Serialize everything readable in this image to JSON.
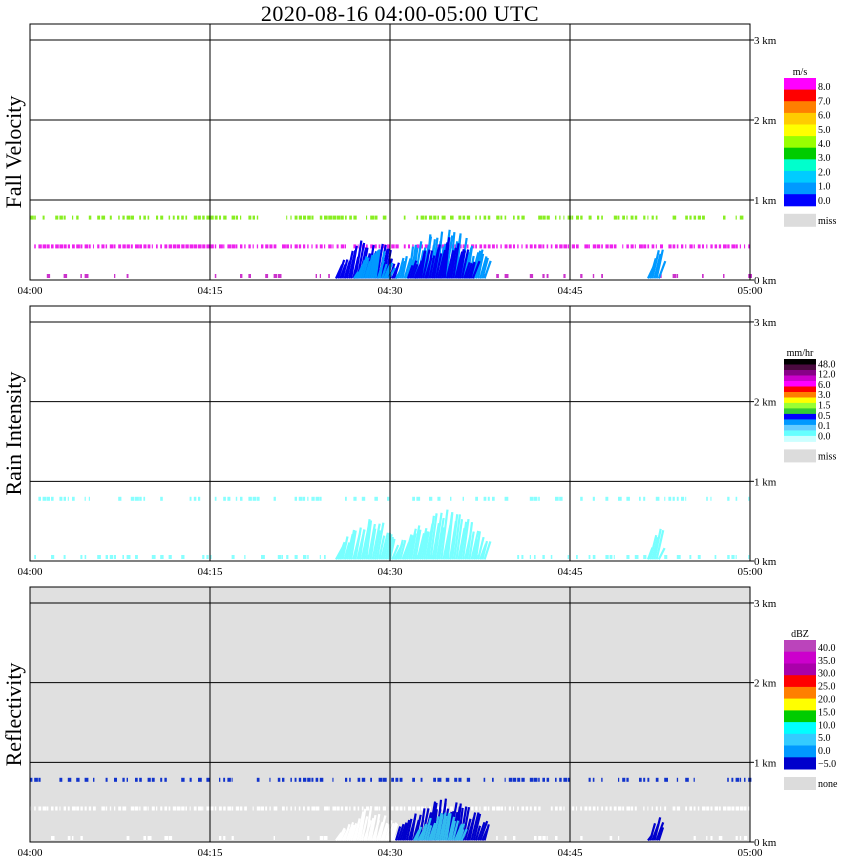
{
  "title": "2020-08-16   04:00-05:00 UTC",
  "x_ticks": [
    "04:00",
    "04:15",
    "04:30",
    "04:45",
    "05:00"
  ],
  "y_ticks": [
    "0 km",
    "1 km",
    "2 km",
    "3 km"
  ],
  "chart_data": [
    {
      "type": "heatmap",
      "ylabel": "Fall Velocity",
      "colorbar_title": "m/s",
      "colorbar_labels": [
        "8.0",
        "7.0",
        "6.0",
        "5.0",
        "4.0",
        "3.0",
        "2.0",
        "1.0",
        "0.0"
      ],
      "colorbar_colors": [
        "#ff00ff",
        "#ff0000",
        "#ff7f00",
        "#ffcc00",
        "#ffff00",
        "#99ff00",
        "#00cc00",
        "#00ffcc",
        "#00ccff",
        "#0099ff",
        "#0000ff"
      ],
      "missing_label": "miss",
      "background": "#ffffff",
      "bands": [
        {
          "y_km": 0.78,
          "color": "#88ee22",
          "density": 0.7
        },
        {
          "y_km": 0.42,
          "color": "#ee22ee",
          "density": 0.95
        },
        {
          "y_km": 0.05,
          "color": "#cc33cc",
          "density": 0.15
        }
      ],
      "cells": [
        {
          "t_start": 25.5,
          "t_end": 30.5,
          "max_km": 0.55,
          "color": "#0000ee"
        },
        {
          "t_start": 27.0,
          "t_end": 30.0,
          "max_km": 0.42,
          "color": "#0099ff"
        },
        {
          "t_start": 30.5,
          "t_end": 38.0,
          "max_km": 0.65,
          "color": "#0099ff"
        },
        {
          "t_start": 31.5,
          "t_end": 37.0,
          "max_km": 0.55,
          "color": "#0000ee"
        },
        {
          "t_start": 51.5,
          "t_end": 52.5,
          "max_km": 0.45,
          "color": "#0099ff"
        }
      ]
    },
    {
      "type": "heatmap",
      "ylabel": "Rain Intensity",
      "colorbar_title": "mm/hr",
      "colorbar_labels": [
        "48.0",
        "12.0",
        "6.0",
        "3.0",
        "1.5",
        "0.5",
        "0.1",
        "0.0"
      ],
      "colorbar_colors": [
        "#000000",
        "#4a0a40",
        "#880088",
        "#cc00cc",
        "#ff00ff",
        "#ff0000",
        "#ff7f00",
        "#ffff00",
        "#99ff33",
        "#33cc33",
        "#0000ff",
        "#0099ff",
        "#66ccff",
        "#66ffff",
        "#ccffff"
      ],
      "missing_label": "miss",
      "background": "#ffffff",
      "bands": [
        {
          "y_km": 0.78,
          "color": "#88ffff",
          "density": 0.45
        },
        {
          "y_km": 0.05,
          "color": "#88ffff",
          "density": 0.35
        }
      ],
      "cells": [
        {
          "t_start": 25.5,
          "t_end": 30.5,
          "max_km": 0.55,
          "color": "#77ffff"
        },
        {
          "t_start": 30.5,
          "t_end": 38.0,
          "max_km": 0.65,
          "color": "#77ffff"
        },
        {
          "t_start": 51.5,
          "t_end": 52.5,
          "max_km": 0.45,
          "color": "#77ffff"
        }
      ]
    },
    {
      "type": "heatmap",
      "ylabel": "Reflectivity",
      "colorbar_title": "dBZ",
      "colorbar_labels": [
        "40.0",
        "35.0",
        "30.0",
        "25.0",
        "20.0",
        "15.0",
        "10.0",
        "5.0",
        "0.0",
        "−5.0"
      ],
      "colorbar_colors": [
        "#bb44bb",
        "#cc00cc",
        "#aa00aa",
        "#ff0000",
        "#ff7f00",
        "#ffff00",
        "#00cc00",
        "#00ffff",
        "#33ccff",
        "#0099ff",
        "#0000cc"
      ],
      "missing_label": "none",
      "background": "#e0e0e0",
      "bands": [
        {
          "y_km": 0.78,
          "color": "#1133cc",
          "density": 0.6
        },
        {
          "y_km": 0.42,
          "color": "#ffffff",
          "density": 0.9
        },
        {
          "y_km": 0.05,
          "color": "#ffffff",
          "density": 0.3
        }
      ],
      "cells": [
        {
          "t_start": 25.5,
          "t_end": 30.5,
          "max_km": 0.45,
          "color": "#ffffff"
        },
        {
          "t_start": 30.5,
          "t_end": 38.0,
          "max_km": 0.55,
          "color": "#0000cc"
        },
        {
          "t_start": 32.0,
          "t_end": 36.0,
          "max_km": 0.4,
          "color": "#33bbee"
        },
        {
          "t_start": 51.5,
          "t_end": 52.5,
          "max_km": 0.35,
          "color": "#0000cc"
        }
      ]
    }
  ]
}
